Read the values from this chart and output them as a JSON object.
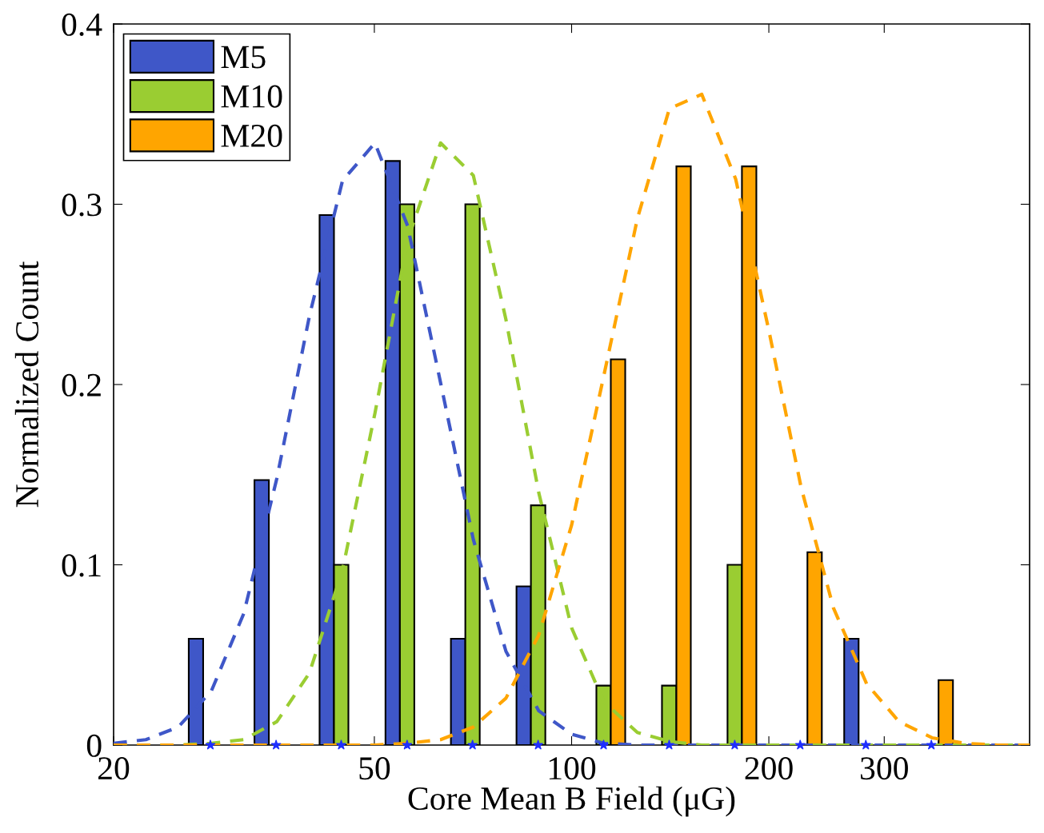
{
  "chart_data": {
    "type": "bar",
    "xlabel": "Core Mean B Field (μG)",
    "ylabel": "Normalized Count",
    "log": "x",
    "xlim": [
      20,
      500
    ],
    "xticks": [
      20,
      50,
      100,
      200,
      300
    ],
    "ylim": [
      0,
      0.4
    ],
    "yticks": [
      0,
      0.1,
      0.2,
      0.3,
      0.4
    ],
    "grid": false,
    "legend": "top left",
    "x": [
      28.1,
      35.4,
      44.5,
      56.1,
      70.6,
      88.9,
      111.9,
      140.9,
      177.4,
      223.3,
      281.2,
      354.0
    ],
    "series": [
      {
        "name": "M5",
        "color": "#3f57c8",
        "values": [
          0.059,
          0.147,
          0.294,
          0.324,
          0.059,
          0.088,
          null,
          null,
          null,
          null,
          0.059,
          null
        ]
      },
      {
        "name": "M10",
        "color": "#9acd32",
        "values": [
          null,
          null,
          0.1,
          0.3,
          0.3,
          0.133,
          0.033,
          0.033,
          0.1,
          null,
          null,
          null
        ]
      },
      {
        "name": "M20",
        "color": "#ffa500",
        "values": [
          null,
          null,
          null,
          null,
          null,
          null,
          0.214,
          0.321,
          0.321,
          0.107,
          null,
          0.036
        ]
      },
      {
        "type": "line",
        "line_style": "dashed",
        "color": "#3f57c8",
        "x": [
          20,
          22.4,
          25.1,
          28.2,
          31.6,
          35.5,
          39.8,
          44.7,
          50.1,
          56.2,
          63.1,
          70.8,
          79.4,
          89.1,
          100,
          112,
          126,
          141,
          158,
          178,
          200,
          224,
          251,
          282,
          316,
          355,
          398,
          447,
          500
        ],
        "values": [
          0.001,
          0.003,
          0.01,
          0.03,
          0.073,
          0.148,
          0.238,
          0.313,
          0.334,
          0.288,
          0.201,
          0.114,
          0.052,
          0.019,
          0.006,
          0.001,
          0,
          0,
          0,
          0,
          0,
          0,
          0,
          0,
          0,
          0,
          0,
          0,
          0
        ]
      },
      {
        "type": "line",
        "line_style": "dashed",
        "color": "#9acd32",
        "x": [
          20,
          22.4,
          25.1,
          28.2,
          31.6,
          35.5,
          39.8,
          44.7,
          50.1,
          56.2,
          63.1,
          70.8,
          79.4,
          89.1,
          100,
          112,
          126,
          141,
          158,
          178,
          200,
          224,
          251,
          282,
          316,
          355,
          398,
          447,
          500
        ],
        "values": [
          0,
          0,
          0,
          0.001,
          0.003,
          0.013,
          0.04,
          0.097,
          0.184,
          0.28,
          0.334,
          0.316,
          0.236,
          0.14,
          0.065,
          0.024,
          0.007,
          0.002,
          0,
          0,
          0,
          0,
          0,
          0,
          0,
          0,
          0,
          0,
          0
        ]
      },
      {
        "type": "line",
        "line_style": "dashed",
        "color": "#ffa500",
        "x": [
          20,
          22.4,
          25.1,
          28.2,
          31.6,
          35.5,
          39.8,
          44.7,
          50.1,
          56.2,
          63.1,
          70.8,
          79.4,
          89.1,
          100,
          112,
          126,
          141,
          158,
          178,
          200,
          224,
          251,
          282,
          316,
          355,
          398,
          447,
          500
        ],
        "values": [
          0,
          0,
          0,
          0,
          0,
          0,
          0,
          0,
          0,
          0.001,
          0.003,
          0.01,
          0.026,
          0.061,
          0.122,
          0.205,
          0.292,
          0.353,
          0.361,
          0.314,
          0.23,
          0.143,
          0.076,
          0.034,
          0.013,
          0.004,
          0.001,
          0,
          0
        ]
      },
      {
        "type": "scatter",
        "marker": "star",
        "color": "#1f2fff",
        "values": [
          0,
          0,
          0,
          0,
          0,
          0,
          0,
          0,
          0,
          0,
          0,
          0
        ]
      }
    ]
  }
}
